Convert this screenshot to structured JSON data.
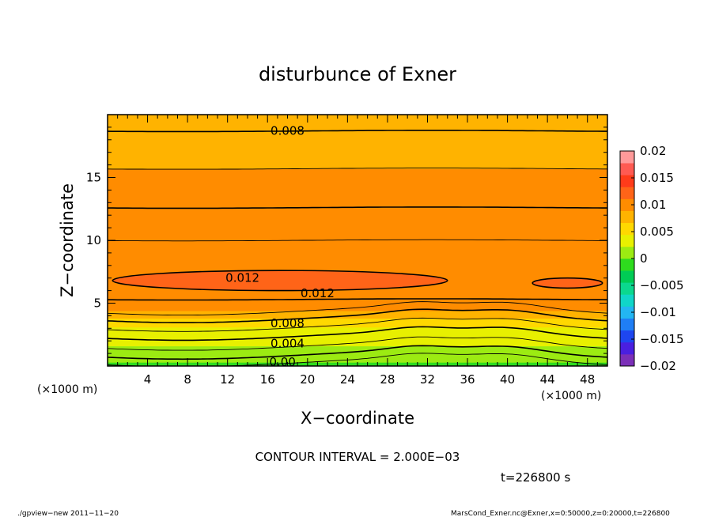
{
  "figure": {
    "title": "disturbunce of Exner",
    "xlabel": "X−coordinate",
    "ylabel": "Z−coordinate",
    "x_unit_left": "(×1000 m)",
    "x_unit_right": "(×1000 m)",
    "contour_interval": "CONTOUR INTERVAL = 2.000E−03",
    "time_label": "t=226800 s",
    "footer_left": "./gpview−new   2011−11−20",
    "footer_right": "MarsCond_Exner.nc@Exner,x=0:50000,z=0:20000,t=226800"
  },
  "chart_data": {
    "type": "heatmap",
    "title": "disturbunce of Exner",
    "xlabel": "X−coordinate",
    "ylabel": "Z−coordinate",
    "xlim": [
      0,
      50
    ],
    "ylim": [
      0,
      20
    ],
    "x_units": "×1000 m",
    "y_units": "×1000 m",
    "x_ticks": [
      4,
      8,
      12,
      16,
      20,
      24,
      28,
      32,
      36,
      40,
      44,
      48
    ],
    "y_ticks": [
      5,
      10,
      15
    ],
    "contour_interval": 0.002,
    "contour_labels": [
      {
        "text": "0.008",
        "x": 18,
        "z": 18.7
      },
      {
        "text": "0.012",
        "x": 13.5,
        "z": 7.0
      },
      {
        "text": "0.012",
        "x": 21,
        "z": 5.8
      },
      {
        "text": "0.008",
        "x": 18,
        "z": 3.4
      },
      {
        "text": "0.004",
        "x": 18,
        "z": 1.8
      },
      {
        "text": "0.00",
        "x": 17.5,
        "z": 0.3
      }
    ],
    "layers": [
      {
        "z": [
          0.0,
          0.3
        ],
        "value": -0.001
      },
      {
        "z": [
          0.3,
          0.9
        ],
        "value": 0.001
      },
      {
        "z": [
          0.9,
          1.6
        ],
        "value": 0.002
      },
      {
        "z": [
          1.6,
          2.4
        ],
        "value": 0.003
      },
      {
        "z": [
          2.4,
          3.1
        ],
        "value": 0.004
      },
      {
        "z": [
          3.1,
          3.8
        ],
        "value": 0.006
      },
      {
        "z": [
          3.8,
          4.4
        ],
        "value": 0.008
      },
      {
        "z": [
          4.4,
          5.3
        ],
        "value": 0.009
      },
      {
        "z": [
          5.3,
          10.0
        ],
        "value": 0.0108
      },
      {
        "z": [
          10.0,
          12.6
        ],
        "value": 0.0098
      },
      {
        "z": [
          12.6,
          15.7
        ],
        "value": 0.0092
      },
      {
        "z": [
          15.7,
          18.7
        ],
        "value": 0.0082
      },
      {
        "z": [
          18.7,
          20.0
        ],
        "value": 0.0076
      }
    ],
    "maxima_regions": [
      {
        "value": 0.0125,
        "x": [
          0.5,
          34.0
        ],
        "z": [
          6.0,
          7.6
        ]
      },
      {
        "value": 0.0125,
        "x": [
          42.5,
          49.5
        ],
        "z": [
          6.2,
          7.0
        ]
      }
    ],
    "colorbar": {
      "ticks": [
        "0.02",
        "0.015",
        "0.01",
        "0.005",
        "0",
        "−0.005",
        "−0.01",
        "−0.015",
        "−0.02"
      ],
      "range": [
        -0.02,
        0.02
      ],
      "colors": [
        "#7B2FB8",
        "#4A1FE0",
        "#1E46F0",
        "#1F7EF5",
        "#23B6F2",
        "#10D6C8",
        "#0BD88E",
        "#00CC55",
        "#2EDC1E",
        "#9CEB12",
        "#E8F000",
        "#FFD800",
        "#FFB300",
        "#FF8C00",
        "#FF6418",
        "#FF3B1A",
        "#FF5A52",
        "#FF9A9A"
      ]
    },
    "grid": false
  }
}
